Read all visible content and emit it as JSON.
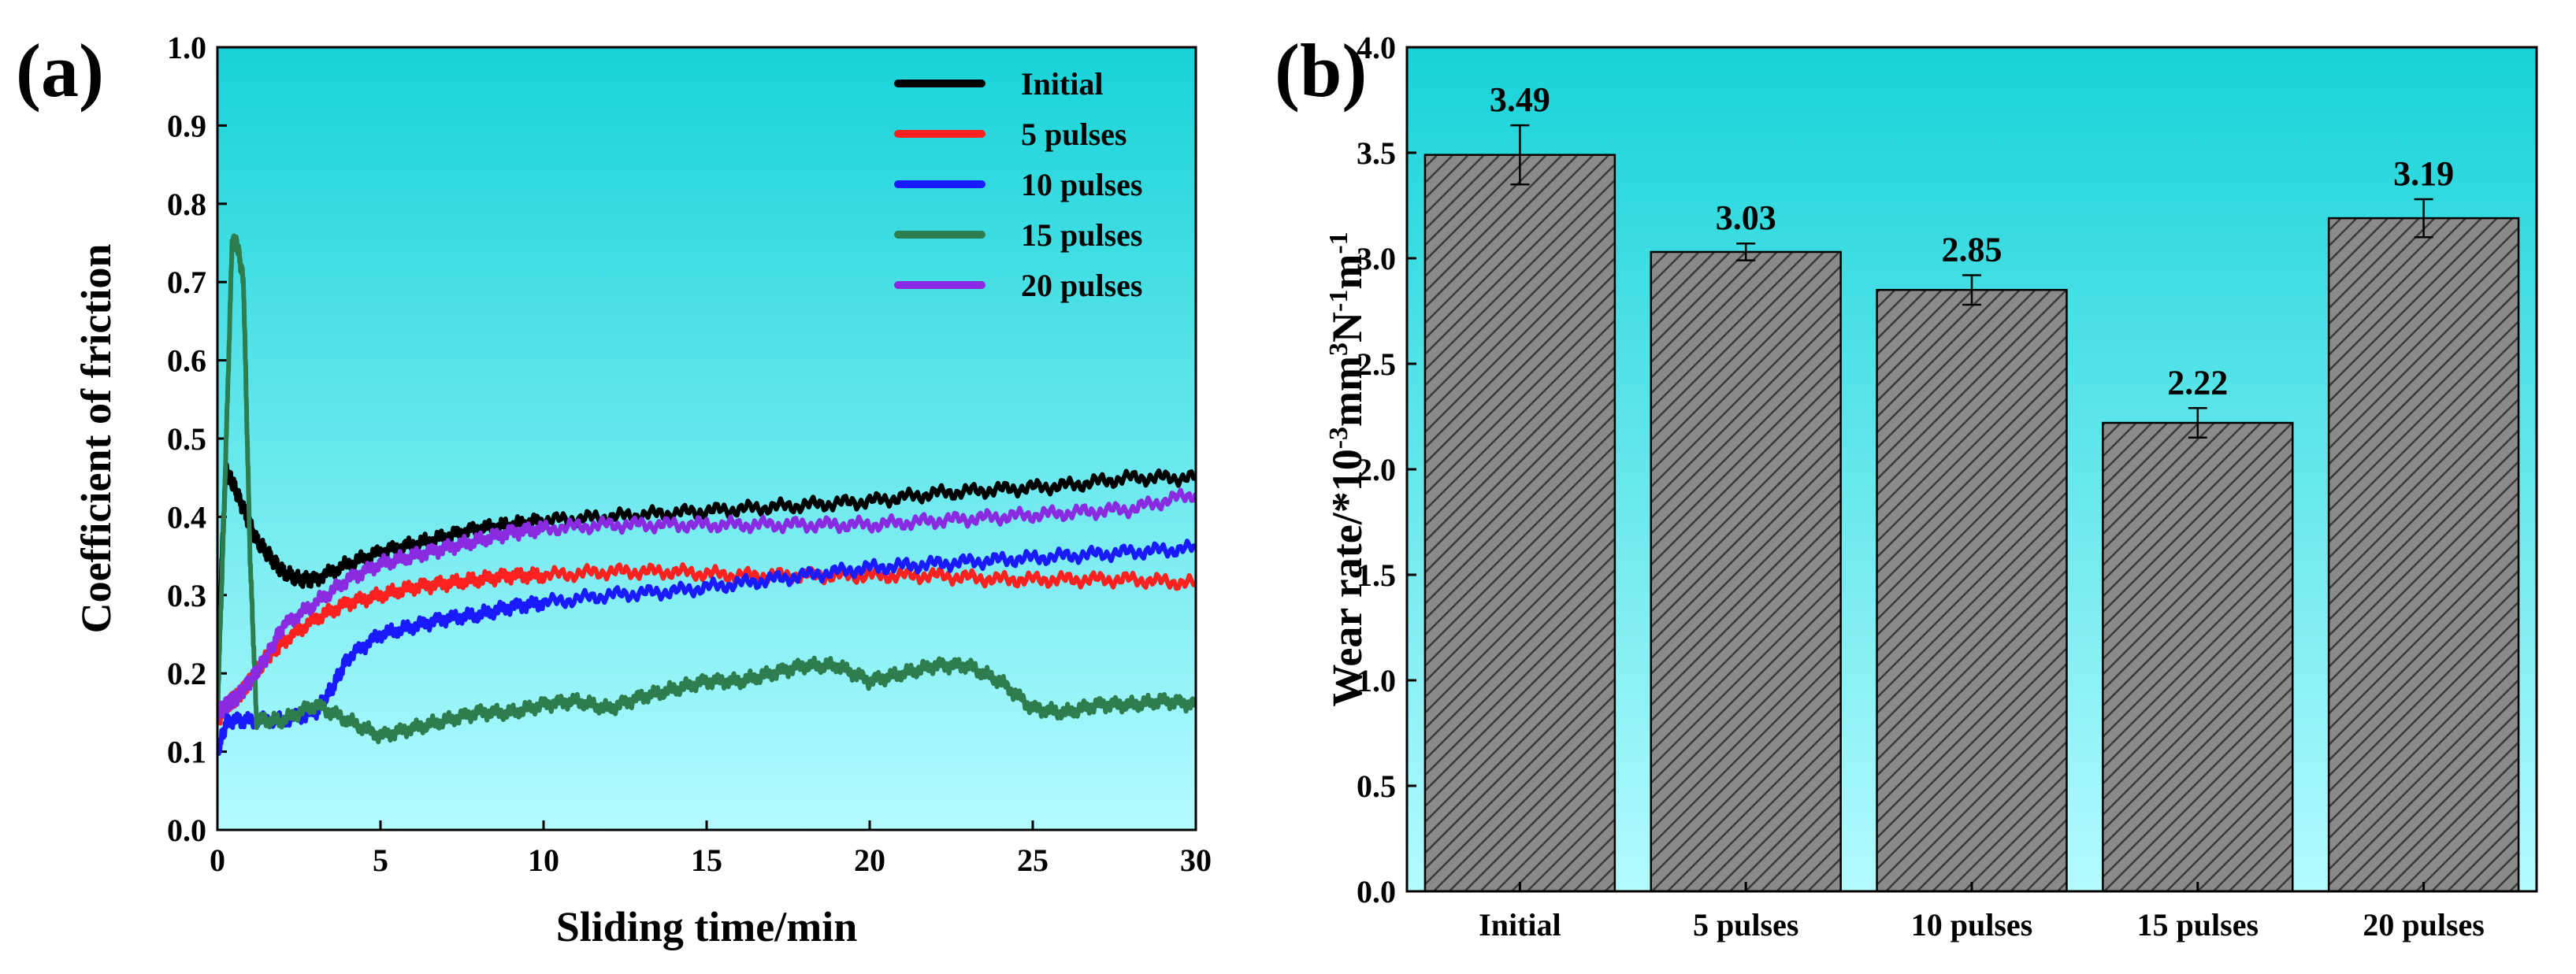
{
  "panel_labels": {
    "a": "(a)",
    "b": "(b)"
  },
  "colors": {
    "bg_top": "#16d3d8",
    "bg_bottom": "#b3fbff",
    "bar_fill": "#8a8a8a",
    "bar_hatch": "#3a3a3a"
  },
  "chart_data": [
    {
      "type": "line",
      "xlabel": "Sliding time/min",
      "ylabel": "Coefficient of friction",
      "xlim": [
        0,
        30
      ],
      "ylim": [
        0.0,
        1.0
      ],
      "xticks": [
        "0",
        "5",
        "10",
        "15",
        "20",
        "25",
        "30"
      ],
      "yticks": [
        "0.0",
        "0.1",
        "0.2",
        "0.3",
        "0.4",
        "0.5",
        "0.6",
        "0.7",
        "0.8",
        "0.9",
        "1.0"
      ],
      "legend_position": "top-right",
      "series": [
        {
          "name": "Initial",
          "color": "#000000",
          "x": [
            0,
            0.25,
            0.5,
            0.8,
            1.2,
            1.6,
            2.0,
            2.5,
            3.0,
            4.0,
            5.0,
            6.0,
            7.0,
            8.0,
            9.0,
            10.0,
            12.0,
            14.0,
            16.0,
            18.0,
            20.0,
            22.0,
            24.0,
            26.0,
            28.0,
            30.0
          ],
          "y": [
            0.2,
            0.46,
            0.44,
            0.41,
            0.37,
            0.35,
            0.33,
            0.32,
            0.32,
            0.34,
            0.355,
            0.365,
            0.375,
            0.385,
            0.39,
            0.395,
            0.4,
            0.405,
            0.41,
            0.415,
            0.42,
            0.43,
            0.435,
            0.44,
            0.45,
            0.45
          ]
        },
        {
          "name": "5 pulses",
          "color": "#ff2020",
          "x": [
            0,
            0.3,
            0.6,
            1.0,
            1.5,
            2.0,
            3.0,
            4.0,
            5.0,
            6.0,
            7.0,
            8.0,
            9.0,
            10.0,
            12.0,
            14.0,
            16.0,
            18.0,
            20.0,
            22.0,
            24.0,
            26.0,
            28.0,
            30.0
          ],
          "y": [
            0.14,
            0.16,
            0.17,
            0.19,
            0.22,
            0.24,
            0.27,
            0.29,
            0.3,
            0.31,
            0.315,
            0.32,
            0.325,
            0.325,
            0.33,
            0.33,
            0.325,
            0.325,
            0.325,
            0.325,
            0.32,
            0.32,
            0.32,
            0.315
          ]
        },
        {
          "name": "10 pulses",
          "color": "#1a1aff",
          "x": [
            0,
            0.3,
            1.0,
            2.0,
            3.0,
            3.5,
            4.0,
            5.0,
            6.0,
            7.0,
            8.0,
            9.0,
            10.0,
            12.0,
            14.0,
            16.0,
            18.0,
            20.0,
            22.0,
            24.0,
            26.0,
            28.0,
            30.0
          ],
          "y": [
            0.1,
            0.14,
            0.14,
            0.14,
            0.15,
            0.18,
            0.22,
            0.25,
            0.26,
            0.27,
            0.275,
            0.285,
            0.29,
            0.3,
            0.305,
            0.315,
            0.325,
            0.335,
            0.34,
            0.345,
            0.35,
            0.355,
            0.36
          ]
        },
        {
          "name": "15 pulses",
          "color": "#2e7d4f",
          "x": [
            0,
            0.2,
            0.45,
            0.6,
            0.8,
            1.0,
            1.2,
            2.0,
            3.0,
            4.0,
            5.0,
            6.0,
            7.0,
            8.0,
            9.0,
            10.0,
            11.0,
            12.0,
            13.0,
            14.0,
            15.0,
            16.0,
            17.0,
            18.0,
            19.0,
            20.0,
            21.0,
            22.0,
            23.0,
            24.0,
            25.0,
            26.0,
            27.0,
            28.0,
            29.0,
            30.0
          ],
          "y": [
            0.15,
            0.4,
            0.75,
            0.75,
            0.7,
            0.35,
            0.14,
            0.14,
            0.16,
            0.14,
            0.12,
            0.13,
            0.14,
            0.15,
            0.15,
            0.16,
            0.165,
            0.155,
            0.17,
            0.18,
            0.19,
            0.19,
            0.2,
            0.21,
            0.21,
            0.19,
            0.2,
            0.21,
            0.21,
            0.19,
            0.155,
            0.15,
            0.16,
            0.16,
            0.165,
            0.16
          ]
        },
        {
          "name": "20 pulses",
          "color": "#8a2be2",
          "x": [
            0,
            0.3,
            0.6,
            1.0,
            1.5,
            2.0,
            3.0,
            4.0,
            5.0,
            6.0,
            7.0,
            8.0,
            9.0,
            10.0,
            12.0,
            14.0,
            16.0,
            18.0,
            20.0,
            22.0,
            24.0,
            26.0,
            28.0,
            30.0
          ],
          "y": [
            0.15,
            0.16,
            0.17,
            0.19,
            0.22,
            0.26,
            0.29,
            0.32,
            0.34,
            0.35,
            0.36,
            0.37,
            0.38,
            0.385,
            0.39,
            0.39,
            0.39,
            0.39,
            0.39,
            0.395,
            0.4,
            0.405,
            0.41,
            0.43
          ]
        }
      ]
    },
    {
      "type": "bar",
      "ylabel_main": "Wear rate/*10",
      "ylabel_parts": [
        "Wear rate/*10",
        "-3",
        "mm",
        "3",
        "N",
        "-1",
        "m",
        "-1"
      ],
      "categories": [
        "Initial",
        "5 pulses",
        "10 pulses",
        "15 pulses",
        "20 pulses"
      ],
      "values": [
        3.49,
        3.03,
        2.85,
        2.22,
        3.19
      ],
      "value_labels": [
        "3.49",
        "3.03",
        "2.85",
        "2.22",
        "3.19"
      ],
      "errors": [
        0.14,
        0.04,
        0.07,
        0.07,
        0.09
      ],
      "ylim": [
        0.0,
        4.0
      ],
      "yticks": [
        "0.0",
        "0.5",
        "1.0",
        "1.5",
        "2.0",
        "2.5",
        "3.0",
        "3.5",
        "4.0"
      ]
    }
  ]
}
